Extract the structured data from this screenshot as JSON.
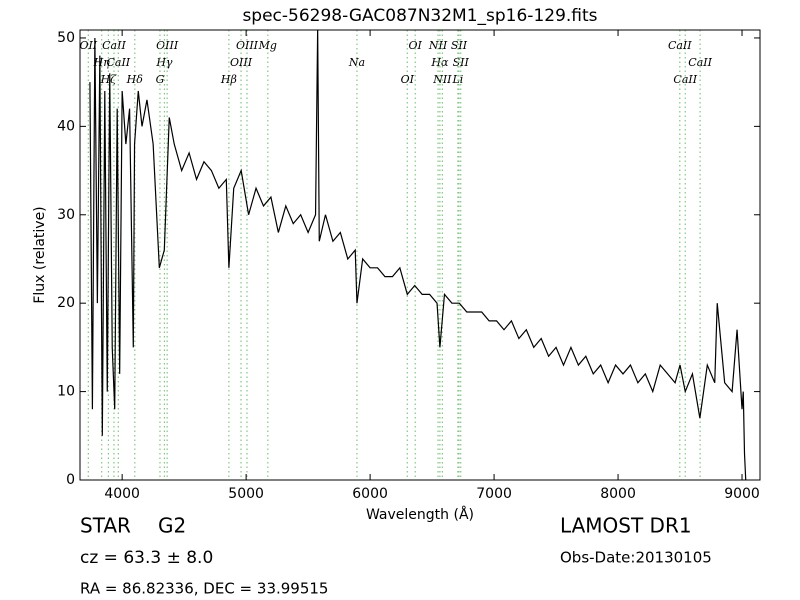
{
  "chart_data": {
    "type": "line",
    "title": "spec-56298-GAC087N32M1_sp16-129.fits",
    "x_label": "Wavelength (Å)",
    "y_label": "Flux (relative)",
    "x": [
      3740,
      3760,
      3780,
      3800,
      3820,
      3840,
      3860,
      3880,
      3900,
      3920,
      3940,
      3960,
      3980,
      4000,
      4030,
      4060,
      4090,
      4100,
      4130,
      4160,
      4200,
      4250,
      4300,
      4340,
      4380,
      4420,
      4480,
      4540,
      4600,
      4660,
      4720,
      4780,
      4840,
      4861,
      4900,
      4960,
      5020,
      5080,
      5140,
      5200,
      5260,
      5320,
      5380,
      5440,
      5500,
      5560,
      5577,
      5590,
      5640,
      5700,
      5760,
      5820,
      5880,
      5894,
      5940,
      6000,
      6060,
      6120,
      6180,
      6240,
      6300,
      6360,
      6420,
      6480,
      6540,
      6563,
      6600,
      6660,
      6720,
      6780,
      6840,
      6900,
      6960,
      7020,
      7080,
      7140,
      7200,
      7260,
      7320,
      7380,
      7440,
      7500,
      7560,
      7620,
      7680,
      7740,
      7800,
      7860,
      7920,
      7980,
      8040,
      8100,
      8160,
      8220,
      8280,
      8340,
      8400,
      8460,
      8500,
      8542,
      8600,
      8660,
      8720,
      8780,
      8800,
      8860,
      8920,
      8960,
      9000,
      9010,
      9020,
      9030
    ],
    "values": [
      45,
      8,
      50,
      20,
      48,
      5,
      44,
      10,
      46,
      15,
      8,
      42,
      12,
      44,
      38,
      42,
      15,
      38,
      44,
      40,
      43,
      38,
      24,
      26,
      41,
      38,
      35,
      37,
      34,
      36,
      35,
      33,
      34,
      24,
      33,
      35,
      30,
      33,
      31,
      32,
      28,
      31,
      29,
      30,
      28,
      30,
      51,
      27,
      30,
      27,
      28,
      25,
      26,
      20,
      25,
      24,
      24,
      23,
      23,
      24,
      21,
      22,
      21,
      21,
      20,
      15,
      21,
      20,
      20,
      19,
      19,
      19,
      18,
      18,
      17,
      18,
      16,
      17,
      15,
      16,
      14,
      15,
      13,
      15,
      13,
      14,
      12,
      13,
      11,
      13,
      12,
      13,
      11,
      12,
      10,
      13,
      12,
      11,
      13,
      10,
      12,
      7,
      13,
      11,
      20,
      11,
      10,
      17,
      8,
      10,
      3,
      0
    ],
    "color": "#000000",
    "line_color": "#7fc97f",
    "lines": [
      {
        "label": "OII",
        "wavelength": 3727
      },
      {
        "label": "Hη",
        "wavelength": 3835
      },
      {
        "label": "Hζ",
        "wavelength": 3889
      },
      {
        "label": "CaII",
        "wavelength": 3934
      },
      {
        "label": "CaII",
        "wavelength": 3969
      },
      {
        "label": "Hδ",
        "wavelength": 4102
      },
      {
        "label": "OIII",
        "wavelength": 4363
      },
      {
        "label": "Hγ",
        "wavelength": 4341
      },
      {
        "label": "G",
        "wavelength": 4305
      },
      {
        "label": "OIII",
        "wavelength": 5007
      },
      {
        "label": "OIII",
        "wavelength": 4959
      },
      {
        "label": "Hβ",
        "wavelength": 4861
      },
      {
        "label": "Mg",
        "wavelength": 5175
      },
      {
        "label": "Na",
        "wavelength": 5894
      },
      {
        "label": "OI",
        "wavelength": 6300
      },
      {
        "label": "OI",
        "wavelength": 6364
      },
      {
        "label": "Hα",
        "wavelength": 6563
      },
      {
        "label": "NII",
        "wavelength": 6583
      },
      {
        "label": "NII",
        "wavelength": 6548
      },
      {
        "label": "SII",
        "wavelength": 6731
      },
      {
        "label": "Li",
        "wavelength": 6708
      },
      {
        "label": "SII",
        "wavelength": 6717
      },
      {
        "label": "CaII",
        "wavelength": 8662
      },
      {
        "label": "CaII",
        "wavelength": 8542
      },
      {
        "label": "CaII",
        "wavelength": 8498
      }
    ],
    "xlim": [
      3660,
      9145
    ],
    "ylim": [
      0,
      50.9
    ],
    "xticks": [
      4000,
      5000,
      6000,
      7000,
      8000,
      9000
    ],
    "yticks": [
      0,
      10,
      20,
      30,
      40,
      50
    ],
    "info": {
      "class": "STAR",
      "subclass": "G2",
      "redshift": "cz = 63.3 ± 8.0",
      "coords": "RA = 86.82336, DEC = 33.99515",
      "survey": "LAMOST DR1",
      "date": "Obs-Date:20130105"
    }
  }
}
